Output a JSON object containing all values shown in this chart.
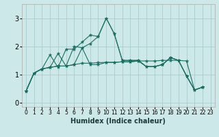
{
  "title": "",
  "xlabel": "Humidex (Indice chaleur)",
  "bg_color": "#cce8e8",
  "grid_color": "#aacccc",
  "line_color": "#1a6e62",
  "xlim": [
    -0.5,
    23.5
  ],
  "ylim": [
    -0.15,
    3.5
  ],
  "xticks": [
    0,
    1,
    2,
    3,
    4,
    5,
    6,
    7,
    8,
    9,
    10,
    11,
    12,
    13,
    14,
    15,
    16,
    17,
    18,
    19,
    20,
    21,
    22,
    23
  ],
  "yticks": [
    0,
    1,
    2,
    3
  ],
  "series": [
    [
      0.4,
      1.05,
      1.2,
      1.7,
      1.25,
      1.9,
      1.9,
      2.15,
      2.4,
      2.35,
      3.0,
      2.45,
      1.5,
      1.5,
      1.5,
      1.28,
      1.28,
      1.35,
      1.6,
      1.5,
      0.95,
      0.45,
      0.55
    ],
    [
      0.4,
      1.05,
      1.2,
      1.25,
      1.3,
      1.3,
      1.35,
      1.4,
      1.4,
      1.42,
      1.43,
      1.43,
      1.45,
      1.45,
      1.48,
      1.48,
      1.48,
      1.5,
      1.5,
      1.5,
      1.48,
      0.45,
      0.55
    ],
    [
      0.4,
      1.05,
      1.2,
      1.25,
      1.75,
      1.3,
      2.0,
      1.95,
      1.35,
      1.35,
      1.43,
      1.43,
      1.45,
      1.45,
      1.48,
      1.28,
      1.28,
      1.35,
      1.6,
      1.5,
      0.95,
      0.45,
      0.55
    ],
    [
      0.4,
      1.05,
      1.2,
      1.25,
      1.3,
      1.3,
      1.35,
      1.95,
      2.1,
      2.35,
      3.0,
      2.45,
      1.5,
      1.5,
      1.5,
      1.28,
      1.28,
      1.35,
      1.6,
      1.5,
      0.95,
      0.45,
      0.55
    ]
  ]
}
